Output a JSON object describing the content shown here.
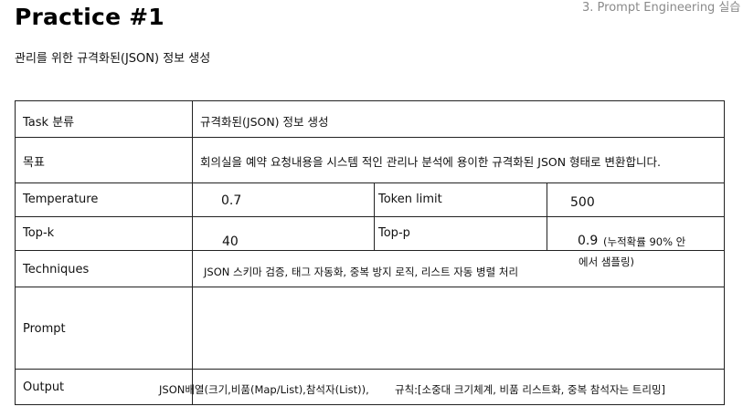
{
  "page": {
    "title": "Practice #1",
    "header_right": "3. Prompt Engineering 실습",
    "subtitle": "관리를 위한 규격화된(JSON) 정보 생성"
  },
  "table": {
    "task_label": "Task 분류",
    "task_value": "규격화된(JSON) 정보 생성",
    "goal_label": "목표",
    "goal_value": "회의실을 예약 요청내용을 시스템 적인 관리나 분석에 용이한 규격화된 JSON 형태로 변환합니다.",
    "temperature_label": "Temperature",
    "temperature_value": "0.7",
    "token_limit_label": "Token limit",
    "token_limit_value": "500",
    "topk_label": "Top-k",
    "topk_value": "40",
    "topp_label": "Top-p",
    "topp_value": "0.9",
    "topp_note_line1": "(누적확률 90% 안",
    "topp_note_line2": "에서 샘플링)",
    "techniques_label": "Techniques",
    "techniques_value": "JSON 스키마 검증, 태그 자동화, 중복 방지 로직, 리스트 자동 병렬 처리",
    "prompt_label": "Prompt",
    "prompt_value": "",
    "output_label": "Output",
    "output_value_a": "JSON배열(크기,비품(Map/List),참석자(List)),",
    "output_value_b": "규칙:[소중대 크기체계, 비품 리스트화, 중복 참석자는 트리밍]"
  }
}
